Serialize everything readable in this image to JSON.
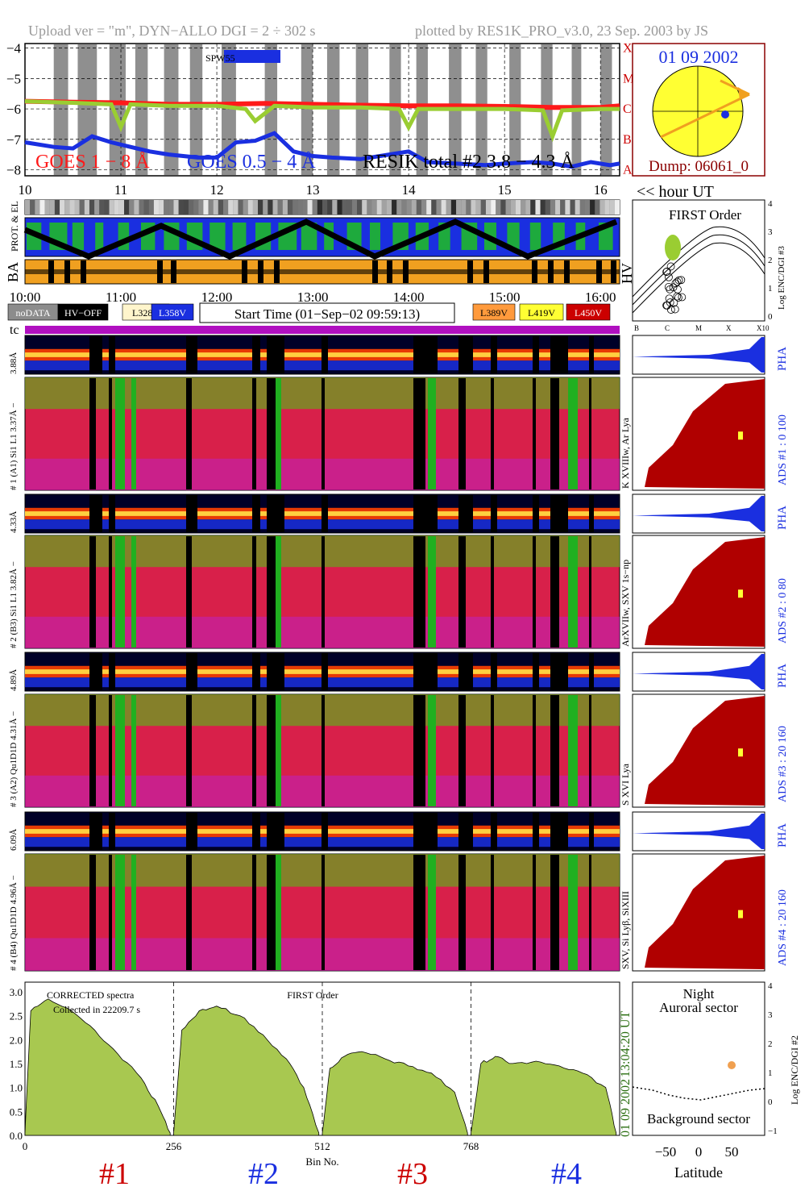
{
  "header": {
    "upload": "Upload ver = \"m\", DYN−ALLO DGI =   2 ÷ 302 s",
    "plotted": "plotted by RES1K_PRO_v3.0, 23 Sep. 2003 by JS"
  },
  "goes_panel": {
    "yticks": [
      "−4",
      "−5",
      "−6",
      "−7",
      "−8"
    ],
    "yvals": [
      -4,
      -5,
      -6,
      -7,
      -8
    ],
    "ylim": [
      -8.2,
      -3.85
    ],
    "xlim": [
      10,
      16.2
    ],
    "xticks": [
      "10",
      "11",
      "12",
      "13",
      "14",
      "15",
      "16"
    ],
    "xtickvals": [
      10,
      11,
      12,
      13,
      14,
      15,
      16
    ],
    "class_labels": [
      "X",
      "M",
      "C",
      "B",
      "A"
    ],
    "class_vals": [
      -4,
      -5,
      -6,
      -7,
      -8
    ],
    "legend_goes18": "GOES 1 − 8 Å",
    "legend_goes054": "GOES 0.5 − 4 Å",
    "legend_resik": "RESIK total #2  3.8 − 4.3 Å",
    "saa_label": "SPW55",
    "hour_label": "<< hour UT",
    "colors": {
      "goes18": "#ff1a1a",
      "goes054": "#1a2fe0",
      "resik": "#9acd32"
    }
  },
  "goes_series": {
    "name_goes18": "GOES 1 − 8 Å",
    "goes18_x": [
      10.0,
      10.5,
      11.0,
      11.5,
      12.0,
      12.5,
      13.0,
      13.5,
      14.0,
      14.5,
      15.0,
      15.5,
      16.0,
      16.2
    ],
    "goes18_y": [
      -5.75,
      -5.78,
      -5.8,
      -5.85,
      -5.85,
      -5.82,
      -5.85,
      -5.88,
      -5.9,
      -5.9,
      -5.92,
      -5.95,
      -5.95,
      -5.9
    ],
    "name_goes054": "GOES 0.5 − 4 Å",
    "goes054_x": [
      10.0,
      10.3,
      10.5,
      10.7,
      10.9,
      11.1,
      11.3,
      11.5,
      11.8,
      12.0,
      12.2,
      12.4,
      12.6,
      12.8,
      13.0,
      13.2,
      13.5,
      13.8,
      14.0,
      14.2,
      14.5,
      14.8,
      15.0,
      15.3,
      15.5,
      15.7,
      15.9,
      16.1,
      16.2
    ],
    "goes054_y": [
      -7.1,
      -7.25,
      -7.3,
      -6.9,
      -7.1,
      -7.25,
      -7.4,
      -7.5,
      -7.6,
      -7.6,
      -7.1,
      -7.05,
      -6.8,
      -7.4,
      -7.55,
      -7.6,
      -7.65,
      -7.5,
      -7.4,
      -7.75,
      -7.8,
      -7.85,
      -7.8,
      -7.75,
      -7.8,
      -7.9,
      -7.75,
      -7.85,
      -7.8
    ],
    "name_resik": "RESIK total #2  3.8 − 4.3 Å",
    "resik_x": [
      10.0,
      10.5,
      10.9,
      11.0,
      11.1,
      11.5,
      12.0,
      12.3,
      12.4,
      12.6,
      13.0,
      13.5,
      13.9,
      14.0,
      14.1,
      14.5,
      15.0,
      15.4,
      15.5,
      15.6,
      16.0,
      16.2
    ],
    "resik_y": [
      -5.75,
      -5.8,
      -5.85,
      -6.6,
      -5.85,
      -5.9,
      -5.9,
      -6.0,
      -6.4,
      -5.9,
      -5.95,
      -5.95,
      -6.0,
      -6.6,
      -6.0,
      -6.0,
      -6.0,
      -6.05,
      -6.9,
      -6.05,
      -6.0,
      -6.0
    ]
  },
  "sun_panel": {
    "date": "01 09 2002",
    "dump": "Dump: 06061_0"
  },
  "strip_panel": {
    "prot_label": "PROT. & EL",
    "ba_label": "BA",
    "hv_label": "HV",
    "time_labels": [
      "10:00",
      "11:00",
      "12:00",
      "13:00",
      "14:00",
      "15:00",
      "16:00"
    ],
    "legend": [
      {
        "label": "noDATA",
        "bg": "#8c8c8c",
        "fg": "#ffffff"
      },
      {
        "label": "HV−OFF",
        "bg": "#000000",
        "fg": "#ffffff"
      },
      {
        "label": "L328V",
        "bg": "#fff5cc",
        "fg": "#000000"
      },
      {
        "label": "L358V",
        "bg": "#1a2fe0",
        "fg": "#ffffff"
      },
      {
        "label": "L389V",
        "bg": "#ff9a3c",
        "fg": "#000000"
      },
      {
        "label": "L419V",
        "bg": "#ffff33",
        "fg": "#000000"
      },
      {
        "label": "L450V",
        "bg": "#cc0000",
        "fg": "#ffffff"
      }
    ],
    "start_time": "Start Time (01−Sep−02 09:59:13)",
    "tc_label": "tc"
  },
  "first_order": {
    "title": "FIRST Order",
    "ylabel": "Log ENC/DGI #3",
    "yticks": [
      "4",
      "3",
      "2",
      "1",
      "0"
    ],
    "xticks": [
      "B",
      "C",
      "M",
      "X",
      "X10"
    ]
  },
  "channels": [
    {
      "pha_label": "6.09Å",
      "spec_label": "# 4 (B4) Qu1D1D 4.96Å −",
      "right_lines": "SXV, Si Lyβ, SiXIII",
      "ads_label": "ADS #4 :   20 160",
      "pha_text": "PHA"
    },
    {
      "pha_label": "4.89Å",
      "spec_label": "# 3 (A2) Qu1D1D 4.31Å −",
      "right_lines": "S XVI Lya",
      "ads_label": "ADS #3 :   20 160",
      "pha_text": "PHA"
    },
    {
      "pha_label": "4.33Å",
      "spec_label": "# 2 (B3) Si1 L1 3.82Å −",
      "right_lines": "ArXVIIw, SXV 1s−np",
      "ads_label": "ADS #2 :    0  80",
      "pha_text": "PHA"
    },
    {
      "pha_label": "3.88Å",
      "spec_label": "# 1 (A1) Si1 L1 3.37Å −",
      "right_lines": "K XVIIIw, Ar Lya",
      "ads_label": "ADS #1 :    0 100",
      "pha_text": "PHA"
    }
  ],
  "bottom_chart": {
    "label1": "CORRECTED spectra",
    "label2": "Collected in 22209.7 s",
    "title": "FIRST Order",
    "xlabel": "Bin No.",
    "xticks": [
      "0",
      "256",
      "512",
      "768"
    ],
    "yticks": [
      "3.0",
      "2.5",
      "2.0",
      "1.5",
      "1.0",
      "0.5",
      "0.0"
    ],
    "time_label": "13:04:20 UT",
    "date_label": "01 09 2002",
    "channel_labels": [
      "#1",
      "#2",
      "#3",
      "#4"
    ],
    "channel_colors": [
      "#cc0000",
      "#1a2fe0",
      "#cc0000",
      "#1a2fe0"
    ]
  },
  "latitude_panel": {
    "top1": "Night",
    "top2": "Auroral sector",
    "bottom": "Background sector",
    "xlabel": "Latitude",
    "xticks": [
      "−50",
      "0",
      "50"
    ],
    "yticks": [
      "4",
      "3",
      "2",
      "1",
      "0",
      "−1"
    ],
    "ylabel": "Log ENC/DGI #2"
  },
  "chart_data": [
    {
      "type": "line",
      "title": "",
      "xlabel": "",
      "ylabel": "",
      "xlim": [
        10,
        16.2
      ],
      "ylim": [
        -8.2,
        -3.85
      ],
      "series": [
        {
          "name": "GOES 1 − 8 Å",
          "x": [
            10.0,
            10.5,
            11.0,
            11.5,
            12.0,
            12.5,
            13.0,
            13.5,
            14.0,
            14.5,
            15.0,
            15.5,
            16.0,
            16.2
          ],
          "y": [
            -5.75,
            -5.78,
            -5.8,
            -5.85,
            -5.85,
            -5.82,
            -5.85,
            -5.88,
            -5.9,
            -5.9,
            -5.92,
            -5.95,
            -5.95,
            -5.9
          ]
        },
        {
          "name": "GOES 0.5 − 4 Å",
          "x": [
            10.0,
            10.5,
            10.7,
            11.0,
            11.5,
            12.0,
            12.4,
            12.6,
            13.0,
            13.5,
            14.0,
            14.5,
            15.0,
            15.5,
            16.0
          ],
          "y": [
            -7.1,
            -7.3,
            -6.9,
            -7.2,
            -7.5,
            -7.6,
            -7.05,
            -6.8,
            -7.55,
            -7.65,
            -7.4,
            -7.8,
            -7.8,
            -7.8,
            -7.8
          ]
        },
        {
          "name": "RESIK total #2  3.8 − 4.3 Å",
          "x": [
            10.0,
            11.0,
            12.0,
            13.0,
            14.0,
            15.0,
            16.0
          ],
          "y": [
            -5.75,
            -5.85,
            -5.9,
            -5.95,
            -6.0,
            -6.0,
            -6.0
          ]
        }
      ]
    },
    {
      "type": "area",
      "title": "FIRST Order",
      "xlabel": "Bin No.",
      "ylabel": "",
      "xlim": [
        0,
        1024
      ],
      "ylim": [
        0,
        3.2
      ],
      "series": [
        {
          "name": "#1",
          "x": [
            0,
            10,
            40,
            80,
            120,
            160,
            200,
            230,
            250
          ],
          "y": [
            0.05,
            2.6,
            2.85,
            2.6,
            2.2,
            1.7,
            1.2,
            0.6,
            0.05
          ]
        },
        {
          "name": "#2",
          "x": [
            256,
            270,
            300,
            330,
            370,
            410,
            450,
            480,
            506
          ],
          "y": [
            0.05,
            2.2,
            2.6,
            2.7,
            2.5,
            2.1,
            1.6,
            1.0,
            0.05
          ]
        },
        {
          "name": "#3",
          "x": [
            512,
            525,
            550,
            580,
            620,
            660,
            700,
            740,
            762
          ],
          "y": [
            0.05,
            1.4,
            1.65,
            1.75,
            1.6,
            1.45,
            1.3,
            0.9,
            0.05
          ]
        },
        {
          "name": "#4",
          "x": [
            768,
            785,
            810,
            840,
            880,
            920,
            960,
            1000,
            1018
          ],
          "y": [
            0.05,
            1.5,
            1.65,
            1.5,
            1.55,
            1.45,
            1.3,
            1.0,
            0.05
          ]
        }
      ]
    }
  ]
}
